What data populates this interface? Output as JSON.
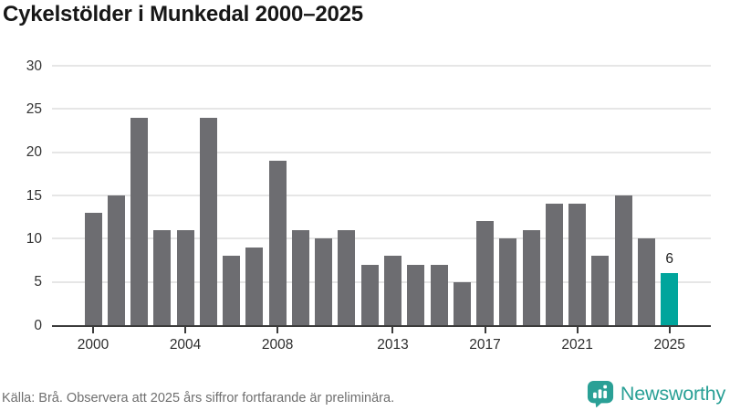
{
  "title": "Cykelstölder i Munkedal 2000–2025",
  "footer": {
    "source_note": "Källa: Brå. Observera att 2025 års siffror fortfarande är preliminära.",
    "brand_name": "Newsworthy"
  },
  "colors": {
    "bar_default": "#6d6d71",
    "bar_highlight": "#00a59c",
    "brand_teal": "#2aa096",
    "grid_line": "#e6e6e6",
    "axis_line": "#3b3b3b",
    "title_text": "#171717",
    "tick_text": "#333333",
    "footer_text": "#6f6f6f"
  },
  "chart_data": {
    "type": "bar",
    "title": "Cykelstölder i Munkedal 2000–2025",
    "categories": [
      2000,
      2001,
      2002,
      2003,
      2004,
      2005,
      2006,
      2007,
      2008,
      2009,
      2010,
      2011,
      2012,
      2013,
      2014,
      2015,
      2016,
      2017,
      2018,
      2019,
      2020,
      2021,
      2022,
      2023,
      2024,
      2025
    ],
    "values": [
      13,
      15,
      24,
      11,
      11,
      24,
      8,
      9,
      19,
      11,
      10,
      11,
      7,
      8,
      7,
      7,
      5,
      12,
      10,
      11,
      14,
      14,
      8,
      15,
      10,
      6
    ],
    "highlight_index": 25,
    "value_labels": {
      "25": "6"
    },
    "xlabel": "",
    "ylabel": "",
    "ylim": [
      0,
      30
    ],
    "y_ticks": [
      0,
      5,
      10,
      15,
      20,
      25,
      30
    ],
    "x_ticks": [
      2000,
      2004,
      2008,
      2013,
      2017,
      2021,
      2025
    ],
    "grid": true,
    "legend": false
  }
}
